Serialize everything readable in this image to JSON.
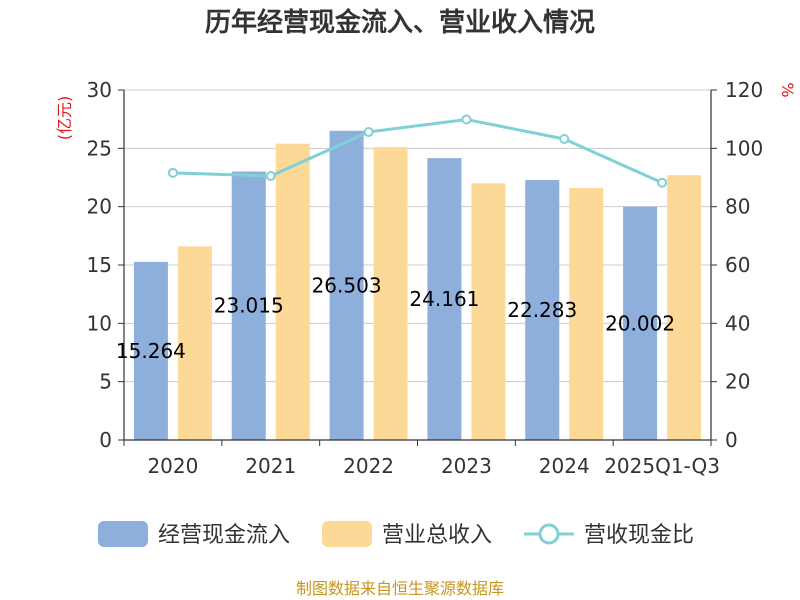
{
  "chart_data": {
    "type": "bar",
    "title": "历年经营现金流入、营业收入情况",
    "left_unit": "(亿元)",
    "right_unit": "%",
    "categories": [
      "2020",
      "2021",
      "2022",
      "2023",
      "2024",
      "2025Q1-Q3"
    ],
    "ylim_left": [
      0,
      30
    ],
    "yticks_left": [
      0,
      5,
      10,
      15,
      20,
      25,
      30
    ],
    "ylim_right": [
      0,
      120
    ],
    "yticks_right": [
      0,
      20,
      40,
      60,
      80,
      100,
      120
    ],
    "grid": true,
    "legend_position": "bottom",
    "series": [
      {
        "name": "经营现金流入",
        "kind": "bar",
        "axis": "left",
        "color": "#8eaedb",
        "values": [
          15.264,
          23.015,
          26.503,
          24.161,
          22.283,
          20.002
        ],
        "labels": [
          "15.264",
          "23.015",
          "26.503",
          "24.161",
          "22.283",
          "20.002"
        ]
      },
      {
        "name": "营业总收入",
        "kind": "bar",
        "axis": "left",
        "color": "#fdd998",
        "values": [
          16.6,
          25.4,
          25.1,
          22.0,
          21.6,
          22.7
        ]
      },
      {
        "name": "营收现金比",
        "kind": "line",
        "axis": "right",
        "color": "#7fd1d6",
        "values": [
          91.6,
          90.5,
          105.6,
          109.9,
          103.2,
          88.2
        ]
      }
    ]
  },
  "footer": {
    "source": "制图数据来自恒生聚源数据库"
  }
}
